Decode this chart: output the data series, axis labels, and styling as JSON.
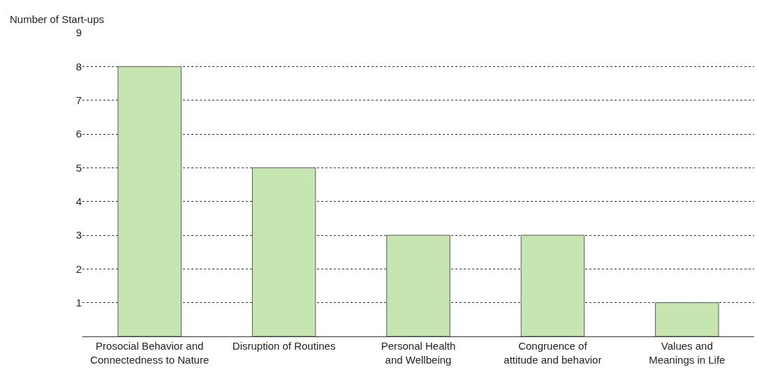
{
  "chart_data": {
    "type": "bar",
    "ylabel": "Number of Start-ups",
    "categories": [
      "Prosocial Behavior and Connectedness to Nature",
      "Disruption of Routines",
      "Personal Health and Wellbeing",
      "Congruence of attitude and behavior",
      "Values and Meanings in Life"
    ],
    "values": [
      8,
      5,
      3,
      3,
      1
    ],
    "color": "#c6e5b0",
    "ylim": [
      0,
      9
    ],
    "yticks": [
      1,
      2,
      3,
      4,
      5,
      6,
      7,
      8,
      9
    ],
    "grid": "y"
  }
}
